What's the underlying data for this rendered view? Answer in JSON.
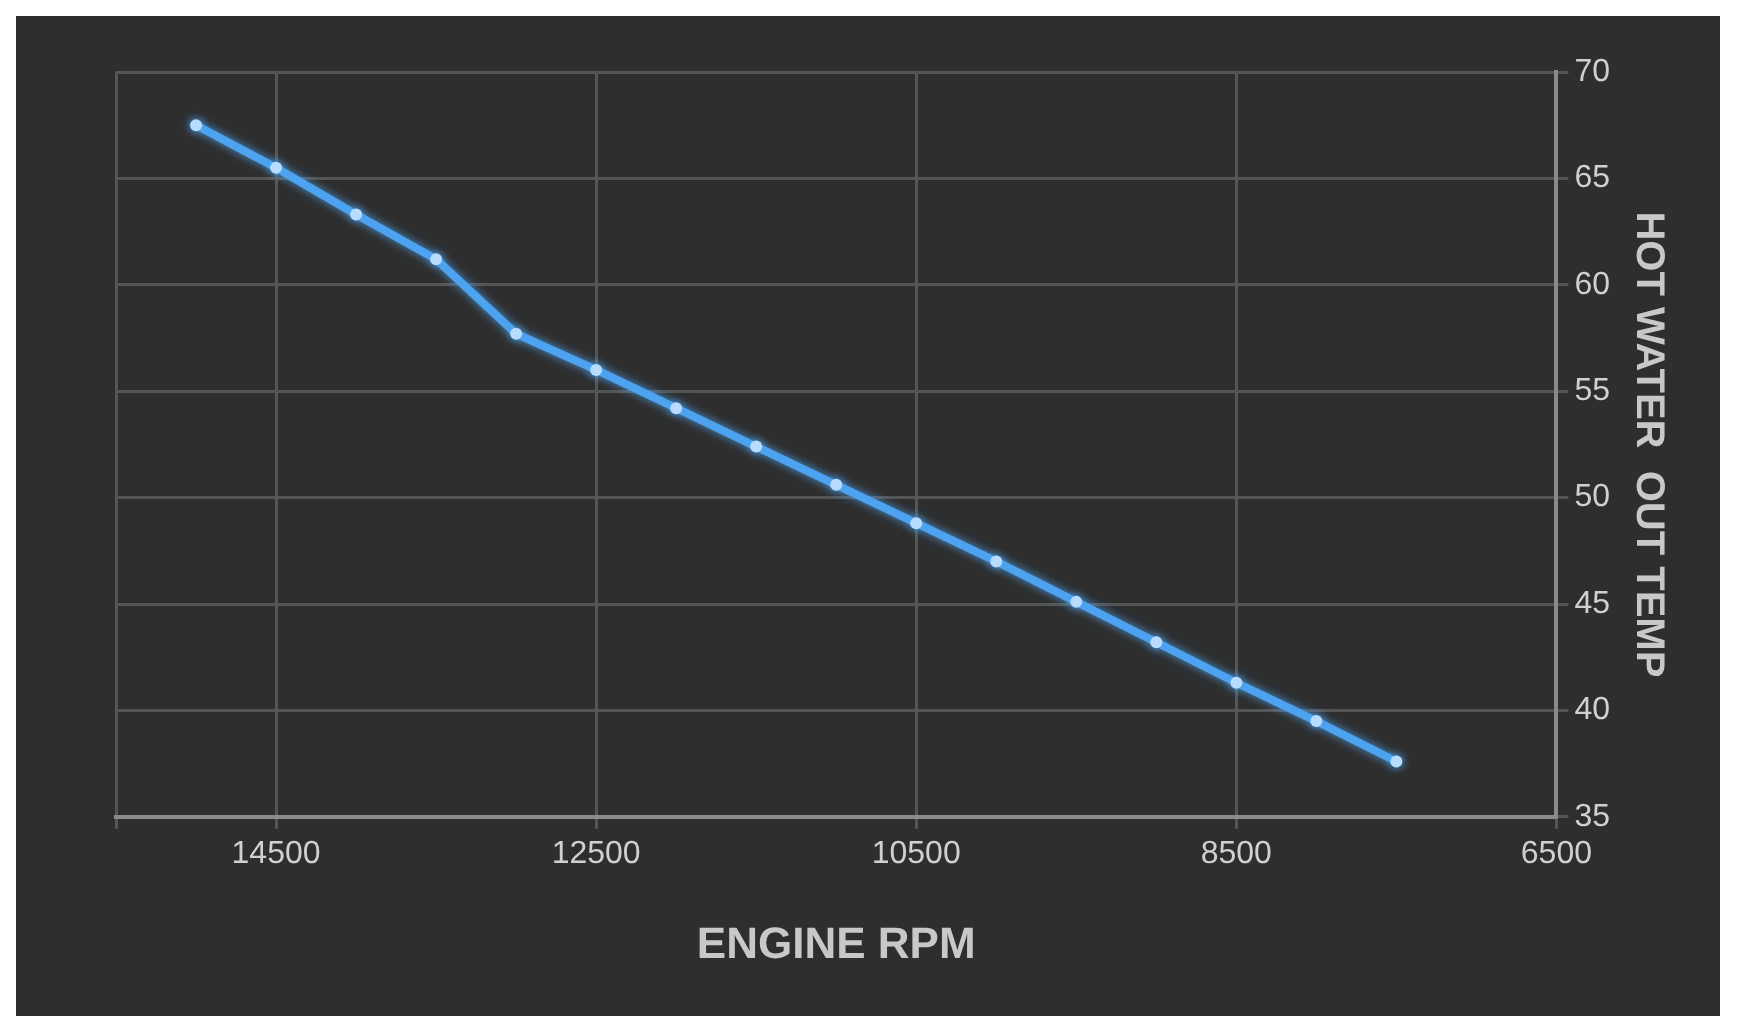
{
  "chart_data": {
    "type": "line",
    "xlabel": "ENGINE RPM",
    "ylabel": "HOT WATER  OUT TEMP",
    "x": [
      15000,
      14500,
      14000,
      13500,
      13000,
      12500,
      12000,
      11500,
      11000,
      10500,
      10000,
      9500,
      9000,
      8500,
      8000,
      7500
    ],
    "series": [
      {
        "color": "#4da3f0",
        "values": [
          67.5,
          65.5,
          63.3,
          61.2,
          57.7,
          56.0,
          54.2,
          52.4,
          50.6,
          48.8,
          47.0,
          45.1,
          43.2,
          41.3,
          39.5,
          37.6
        ]
      }
    ],
    "xlim": [
      15500,
      6500
    ],
    "xticks": [
      {
        "value": 15500,
        "label": null
      },
      14500,
      12500,
      10500,
      8500,
      6500
    ],
    "ylim": [
      35,
      70
    ],
    "yticks": [
      35,
      40,
      45,
      50,
      55,
      60,
      65,
      70
    ],
    "grid": true,
    "legend": false,
    "marker": "circle",
    "line_style": "solid"
  }
}
